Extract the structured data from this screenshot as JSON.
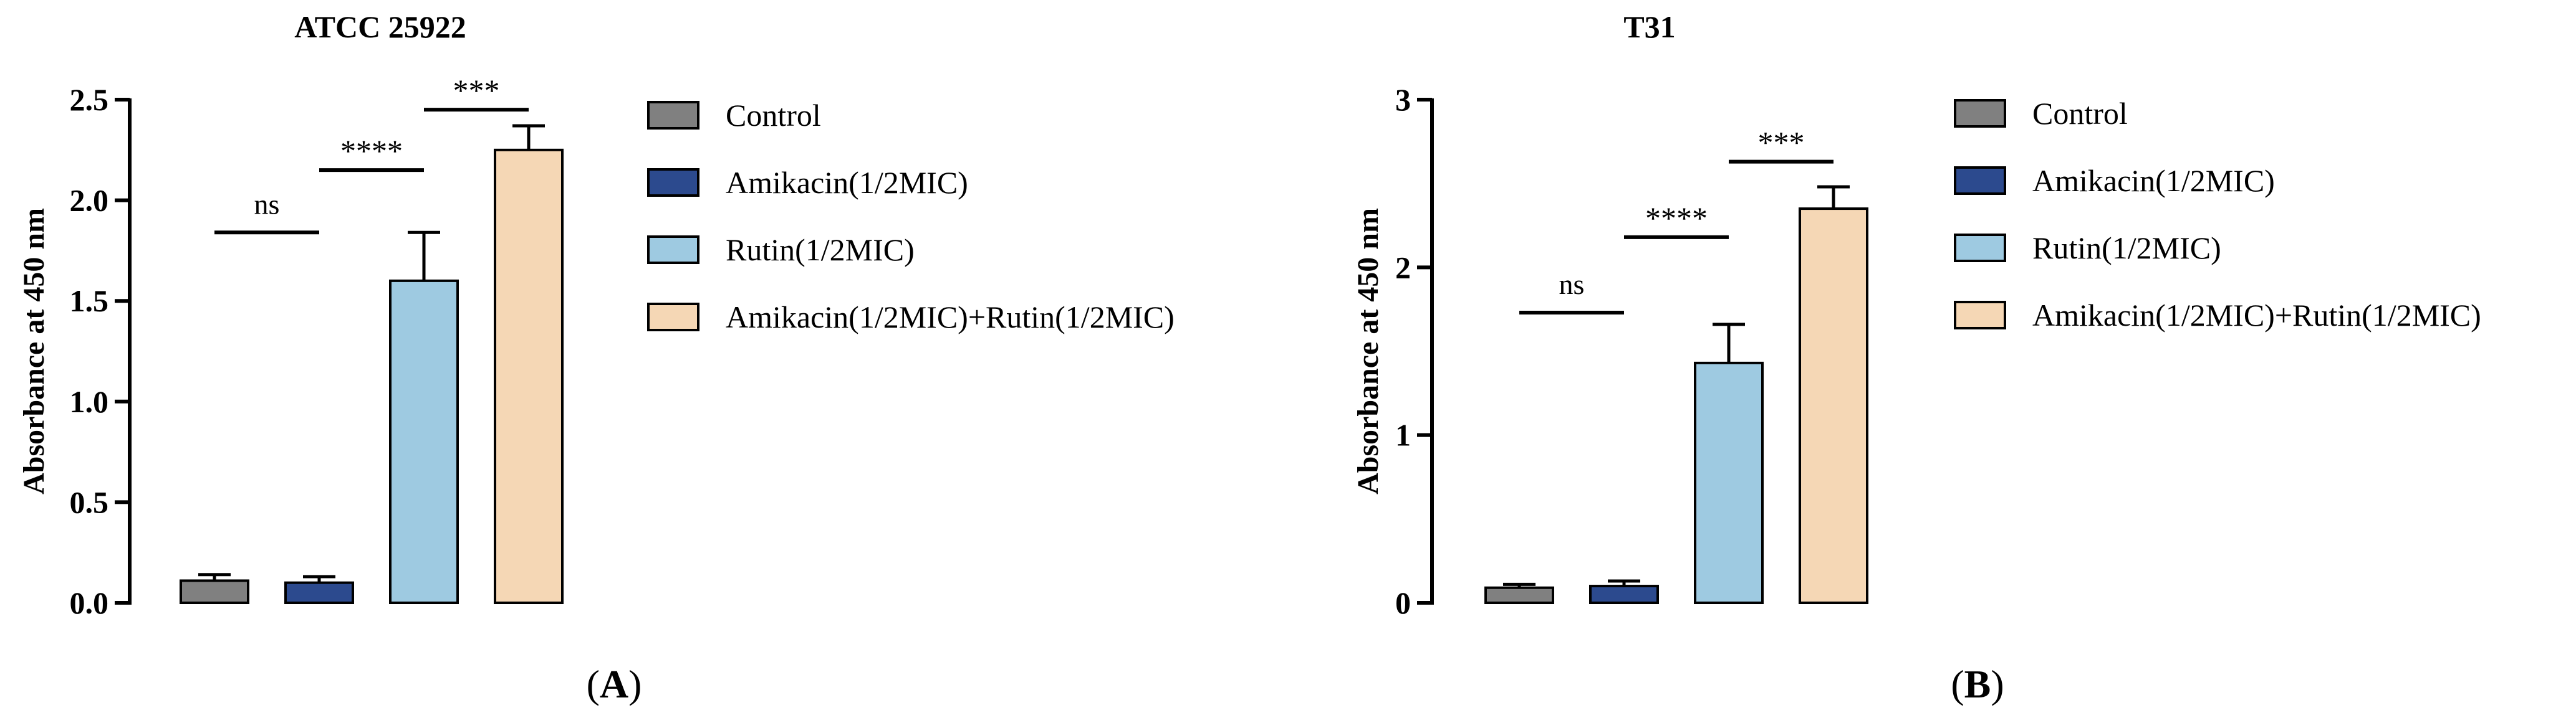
{
  "figure_labels": [
    "A",
    "B"
  ],
  "legend": {
    "items": [
      {
        "label": "Control",
        "color": "#808080"
      },
      {
        "label": "Amikacin(1/2MIC)",
        "color": "#2c4a8e"
      },
      {
        "label": "Rutin(1/2MIC)",
        "color": "#9ecae1"
      },
      {
        "label": "Amikacin(1/2MIC)+Rutin(1/2MIC)",
        "color": "#f5d7b5"
      }
    ]
  },
  "chart_data": [
    {
      "type": "bar",
      "title": "ATCC 25922",
      "ylabel": "Absorbance at 450 nm",
      "xlabel": "",
      "categories": [
        "Control",
        "Amikacin(1/2MIC)",
        "Rutin(1/2MIC)",
        "Amikacin(1/2MIC)+Rutin(1/2MIC)"
      ],
      "values": [
        0.11,
        0.1,
        1.6,
        2.25
      ],
      "errors": [
        0.03,
        0.03,
        0.24,
        0.12
      ],
      "ylim": [
        0,
        2.5
      ],
      "yticks": [
        "0.0",
        "0.5",
        "1.0",
        "1.5",
        "2.0",
        "2.5"
      ],
      "significance": [
        {
          "from": 0,
          "to": 1,
          "label": "ns",
          "y": 1.84
        },
        {
          "from": 1,
          "to": 2,
          "label": "****",
          "y": 2.15
        },
        {
          "from": 2,
          "to": 3,
          "label": "***",
          "y": 2.45
        }
      ]
    },
    {
      "type": "bar",
      "title": "T31",
      "ylabel": "Absorbance at 450 nm",
      "xlabel": "",
      "categories": [
        "Control",
        "Amikacin(1/2MIC)",
        "Rutin(1/2MIC)",
        "Amikacin(1/2MIC)+Rutin(1/2MIC)"
      ],
      "values": [
        0.09,
        0.1,
        1.43,
        2.35
      ],
      "errors": [
        0.02,
        0.03,
        0.23,
        0.13
      ],
      "ylim": [
        0,
        3
      ],
      "yticks": [
        "0",
        "1",
        "2",
        "3"
      ],
      "significance": [
        {
          "from": 0,
          "to": 1,
          "label": "ns",
          "y": 1.73
        },
        {
          "from": 1,
          "to": 2,
          "label": "****",
          "y": 2.18
        },
        {
          "from": 2,
          "to": 3,
          "label": "***",
          "y": 2.63
        }
      ]
    }
  ]
}
